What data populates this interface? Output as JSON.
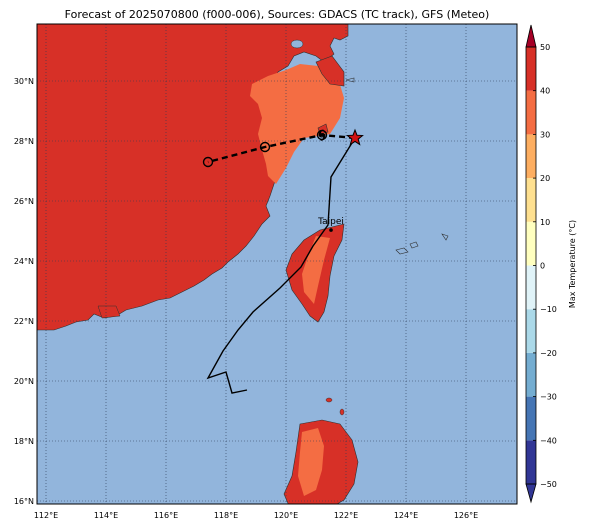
{
  "title": "Forecast of 2025070800 (f000-006), Sources: GDACS (TC track), GFS (Meteo)",
  "map": {
    "lon_range": [
      111.7,
      127.7
    ],
    "lat_range": [
      15.9,
      31.9
    ],
    "lon_ticks": [
      112,
      114,
      116,
      118,
      120,
      122,
      124,
      126
    ],
    "lon_tick_labels": [
      "112°E",
      "114°E",
      "116°E",
      "118°E",
      "120°E",
      "122°E",
      "124°E",
      "126°E"
    ],
    "lat_ticks": [
      16,
      18,
      20,
      22,
      24,
      26,
      28,
      30
    ],
    "lat_tick_labels": [
      "16°N",
      "18°N",
      "20°N",
      "22°N",
      "24°N",
      "26°N",
      "28°N",
      "30°N"
    ],
    "grid": "dotted",
    "ocean_color": "#92b5dc",
    "land_warm_color": "#d73027",
    "land_mild_color": "#f46d43"
  },
  "colorbar": {
    "label": "Max Temperature (°C)",
    "ticks": [
      -50,
      -40,
      -30,
      -20,
      -10,
      0,
      10,
      20,
      30,
      40,
      50
    ],
    "tick_labels": [
      "−50",
      "−40",
      "−30",
      "−20",
      "−10",
      "0",
      "10",
      "20",
      "30",
      "40",
      "50"
    ],
    "colors": [
      "#313695",
      "#4575b4",
      "#74add1",
      "#abd9e9",
      "#e0f3f8",
      "#ffffbf",
      "#fee090",
      "#fdae61",
      "#f46d43",
      "#d73027",
      "#a50026"
    ]
  },
  "cities": [
    {
      "name": "Taipei",
      "lon": 121.5,
      "lat": 25.03
    }
  ],
  "forecast_track": {
    "points": [
      [
        122.3,
        28.1
      ],
      [
        121.2,
        28.2
      ],
      [
        119.3,
        27.8
      ],
      [
        117.4,
        27.3
      ]
    ],
    "current_position": [
      122.3,
      28.1
    ]
  },
  "past_track": {
    "points": [
      [
        122.3,
        28.1
      ],
      [
        121.5,
        26.8
      ],
      [
        121.4,
        25.2
      ],
      [
        120.9,
        24.5
      ],
      [
        120.5,
        23.8
      ],
      [
        119.8,
        23.1
      ],
      [
        118.9,
        22.3
      ],
      [
        118.4,
        21.7
      ],
      [
        117.9,
        21.0
      ],
      [
        117.4,
        20.1
      ],
      [
        118.0,
        20.3
      ],
      [
        118.2,
        19.6
      ],
      [
        118.7,
        19.7
      ]
    ]
  }
}
